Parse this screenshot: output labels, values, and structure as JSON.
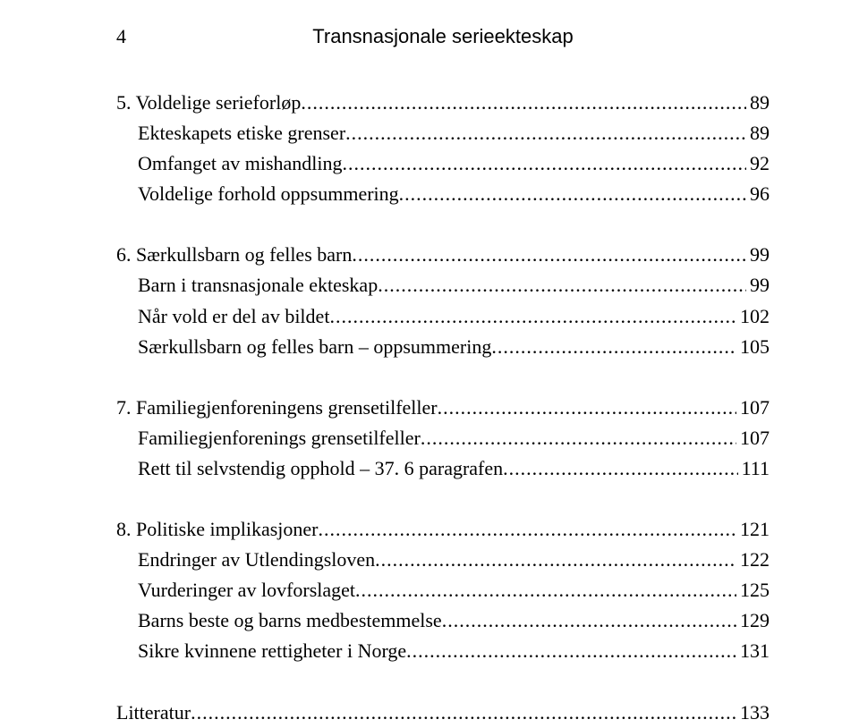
{
  "header": {
    "page_number": "4",
    "title": "Transnasjonale serieekteskap"
  },
  "toc": [
    {
      "label": "5. Voldelige serieforløp",
      "page": "89",
      "indent": false,
      "spacer_before": false
    },
    {
      "label": "Ekteskapets etiske grenser",
      "page": "89",
      "indent": true,
      "spacer_before": false
    },
    {
      "label": "Omfanget av mishandling",
      "page": "92",
      "indent": true,
      "spacer_before": false
    },
    {
      "label": "Voldelige forhold oppsummering",
      "page": "96",
      "indent": true,
      "spacer_before": false
    },
    {
      "label": "6. Særkullsbarn og felles barn",
      "page": "99",
      "indent": false,
      "spacer_before": true
    },
    {
      "label": "Barn i transnasjonale ekteskap",
      "page": "99",
      "indent": true,
      "spacer_before": false
    },
    {
      "label": "Når vold er del av bildet",
      "page": "102",
      "indent": true,
      "spacer_before": false
    },
    {
      "label": "Særkullsbarn og felles barn – oppsummering",
      "page": "105",
      "indent": true,
      "spacer_before": false
    },
    {
      "label": "7. Familiegjenforeningens grensetilfeller",
      "page": "107",
      "indent": false,
      "spacer_before": true
    },
    {
      "label": "Familiegjenforenings grensetilfeller",
      "page": "107",
      "indent": true,
      "spacer_before": false
    },
    {
      "label": "Rett til selvstendig opphold – 37. 6 paragrafen",
      "page": "111",
      "indent": true,
      "spacer_before": false
    },
    {
      "label": "8. Politiske implikasjoner",
      "page": "121",
      "indent": false,
      "spacer_before": true
    },
    {
      "label": "Endringer av Utlendingsloven",
      "page": "122",
      "indent": true,
      "spacer_before": false
    },
    {
      "label": "Vurderinger av lovforslaget",
      "page": "125",
      "indent": true,
      "spacer_before": false
    },
    {
      "label": "Barns beste og barns medbestemmelse",
      "page": "129",
      "indent": true,
      "spacer_before": false
    },
    {
      "label": "Sikre kvinnene rettigheter i Norge",
      "page": "131",
      "indent": true,
      "spacer_before": false
    },
    {
      "label": "Litteratur",
      "page": "133",
      "indent": false,
      "spacer_before": true
    }
  ]
}
